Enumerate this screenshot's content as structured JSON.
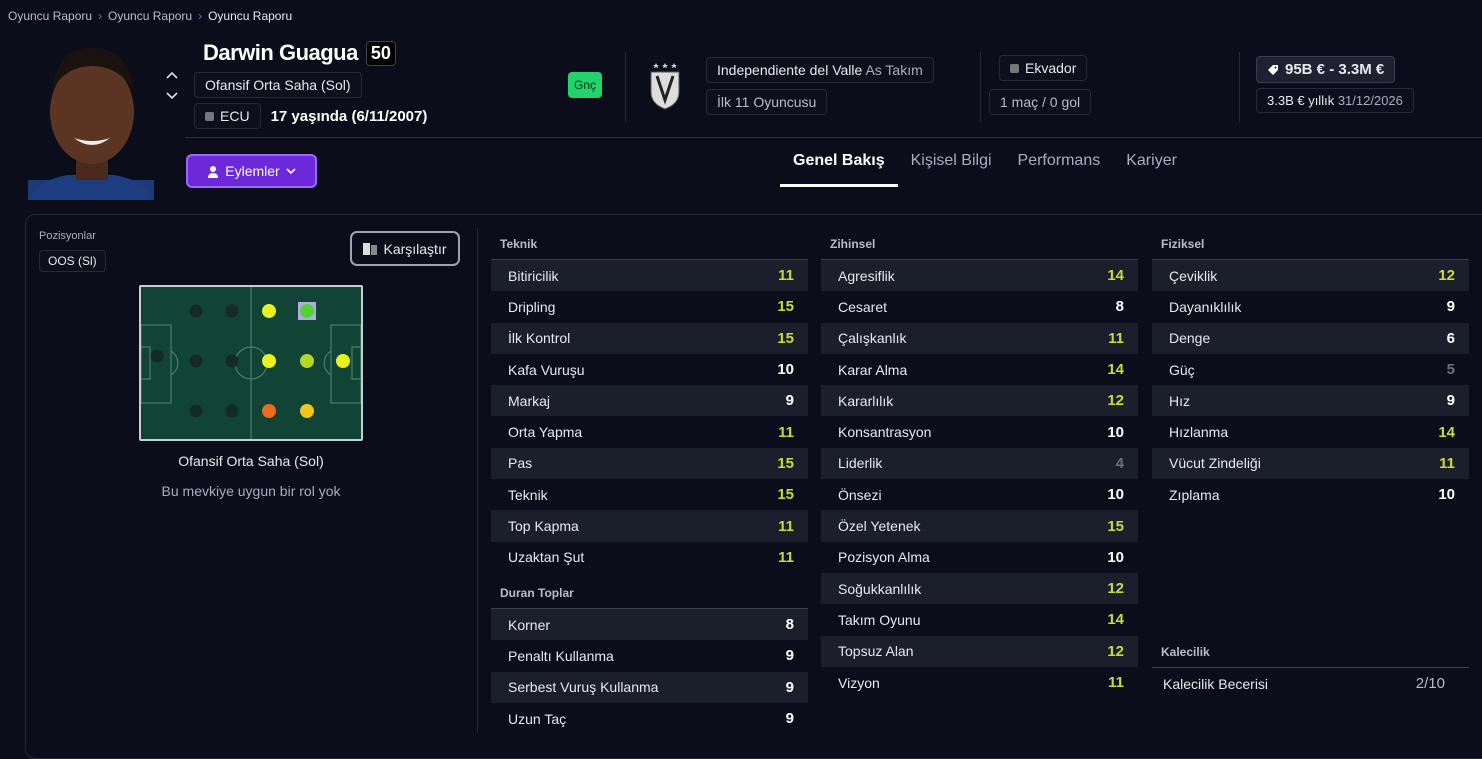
{
  "breadcrumb": [
    "Oyuncu Raporu",
    "Oyuncu Raporu",
    "Oyuncu Raporu"
  ],
  "player": {
    "name": "Darwin Guagua",
    "rating": "50",
    "position": "Ofansif Orta Saha (Sol)",
    "nation_code": "ECU",
    "age": "17 yaşında (6/11/2007)",
    "badge": "Gnç"
  },
  "club": {
    "name": "Independiente del Valle",
    "squad": "As Takım",
    "status": "İlk 11 Oyuncusu"
  },
  "nation": {
    "name": "Ekvador",
    "caps": "1 maç / 0 gol"
  },
  "value": {
    "range": "95B € - 3.3M €",
    "wage": "3.3B € yıllık",
    "contract_end": "31/12/2026"
  },
  "actions_label": "Eylemler",
  "tabs": [
    "Genel Bakış",
    "Kişisel Bilgi",
    "Performans",
    "Kariyer"
  ],
  "positions": {
    "label": "Pozisyonlar",
    "chip": "OOS (Sl)",
    "compare": "Karşılaştır",
    "role_title": "Ofansif Orta Saha (Sol)",
    "role_note": "Bu mevkiye uygun bir rol yok"
  },
  "colors": {
    "high": "#c6dd3f",
    "normal": "#ffffff",
    "low": "#6b6f7c",
    "accent": "#6d28d9"
  },
  "attributes": {
    "teknik": {
      "title": "Teknik",
      "items": [
        [
          "Bitiricilik",
          11
        ],
        [
          "Dripling",
          15
        ],
        [
          "İlk Kontrol",
          15
        ],
        [
          "Kafa Vuruşu",
          10
        ],
        [
          "Markaj",
          9
        ],
        [
          "Orta Yapma",
          11
        ],
        [
          "Pas",
          15
        ],
        [
          "Teknik",
          15
        ],
        [
          "Top Kapma",
          11
        ],
        [
          "Uzaktan Şut",
          11
        ]
      ]
    },
    "duran": {
      "title": "Duran Toplar",
      "items": [
        [
          "Korner",
          8
        ],
        [
          "Penaltı Kullanma",
          9
        ],
        [
          "Serbest Vuruş Kullanma",
          9
        ],
        [
          "Uzun Taç",
          9
        ]
      ]
    },
    "zihinsel": {
      "title": "Zihinsel",
      "items": [
        [
          "Agresiflik",
          14
        ],
        [
          "Cesaret",
          8
        ],
        [
          "Çalışkanlık",
          11
        ],
        [
          "Karar Alma",
          14
        ],
        [
          "Kararlılık",
          12
        ],
        [
          "Konsantrasyon",
          10
        ],
        [
          "Liderlik",
          4
        ],
        [
          "Önsezi",
          10
        ],
        [
          "Özel Yetenek",
          15
        ],
        [
          "Pozisyon Alma",
          10
        ],
        [
          "Soğukkanlılık",
          12
        ],
        [
          "Takım Oyunu",
          14
        ],
        [
          "Topsuz Alan",
          12
        ],
        [
          "Vizyon",
          11
        ]
      ]
    },
    "fiziksel": {
      "title": "Fiziksel",
      "items": [
        [
          "Çeviklik",
          12
        ],
        [
          "Dayanıklılık",
          9
        ],
        [
          "Denge",
          6
        ],
        [
          "Güç",
          5
        ],
        [
          "Hız",
          9
        ],
        [
          "Hızlanma",
          14
        ],
        [
          "Vücut Zindeliği",
          11
        ],
        [
          "Zıplama",
          10
        ]
      ]
    },
    "kalecilik": {
      "title": "Kalecilik",
      "items": [
        [
          "Kalecilik Becerisi",
          "2/10"
        ]
      ]
    }
  }
}
